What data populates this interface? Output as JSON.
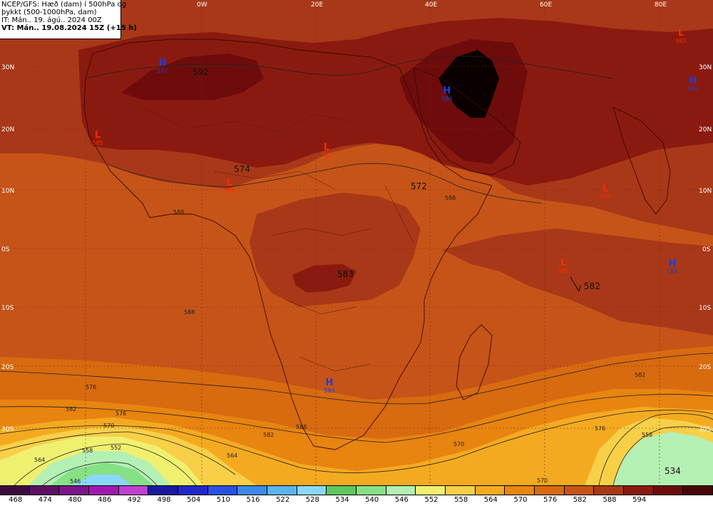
{
  "info": {
    "line1": "NCEP/GFS: Hæð (dam) í 500hPa og",
    "line2": "þykkt (500-1000hPa, dam)",
    "line3": "IT: Mán.. 19. ágú.. 2024 00Z",
    "line4": "VT: Mán.. 19.08.2024 15Z (+15 h)"
  },
  "lon_labels": [
    "0W",
    "20E",
    "40E",
    "60E",
    "80E"
  ],
  "lat_labels": [
    "30N",
    "20N",
    "10N",
    "0S",
    "10S",
    "20S",
    "30S"
  ],
  "lat_labels_right": [
    "30N",
    "20N",
    "10N",
    "0S",
    "10S",
    "20S",
    "30S"
  ],
  "pressure_labels": [
    "592",
    "574",
    "572",
    "583",
    "582",
    "534"
  ],
  "systems": [
    {
      "type": "H",
      "value": "597",
      "color": "#1d3fd6"
    },
    {
      "type": "H",
      "value": "599",
      "color": "#1d3fd6"
    },
    {
      "type": "H",
      "value": "596",
      "color": "#1d3fd6"
    },
    {
      "type": "L",
      "value": "585",
      "color": "#ff2a00"
    },
    {
      "type": "L",
      "value": "589",
      "color": "#ff2a00"
    },
    {
      "type": "L",
      "value": "586",
      "color": "#ff2a00"
    },
    {
      "type": "L",
      "value": "585",
      "color": "#ff2a00"
    },
    {
      "type": "L",
      "value": "583",
      "color": "#ff2a00"
    },
    {
      "type": "L",
      "value": "585",
      "color": "#ff2a00"
    },
    {
      "type": "H",
      "value": "593",
      "color": "#1d3fd6"
    },
    {
      "type": "H",
      "value": "588",
      "color": "#1d3fd6"
    }
  ],
  "contour_labels": [
    "588",
    "588",
    "588",
    "588",
    "582",
    "576",
    "570",
    "564",
    "558",
    "552",
    "546",
    "582",
    "576",
    "570",
    "564",
    "558",
    "582",
    "576",
    "570"
  ],
  "colorbar": {
    "values": [
      "468",
      "474",
      "480",
      "486",
      "492",
      "498",
      "504",
      "510",
      "516",
      "522",
      "528",
      "534",
      "540",
      "546",
      "552",
      "558",
      "564",
      "570",
      "576",
      "582",
      "588",
      "594"
    ],
    "colors": [
      "#3d0a3d",
      "#5e0f63",
      "#7d148a",
      "#a018b0",
      "#c040d0",
      "#1a1aa0",
      "#2228c8",
      "#2a50e0",
      "#3a8ae8",
      "#5ab4f0",
      "#8ad8f8",
      "#5dc85d",
      "#86e086",
      "#b4f0b4",
      "#f0f070",
      "#f8d048",
      "#f4aa20",
      "#e88410",
      "#d86a10",
      "#c65418",
      "#a83818",
      "#8a1a10",
      "#6e0c0c",
      "#4a0606"
    ]
  }
}
